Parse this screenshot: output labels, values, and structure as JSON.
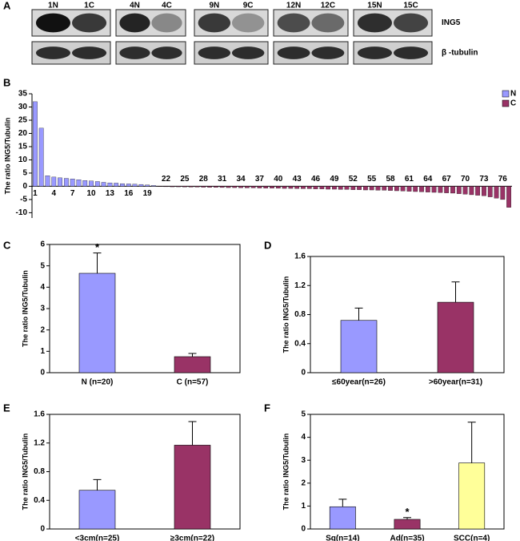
{
  "blot": {
    "label": "A",
    "lanes": [
      "1N",
      "1C",
      "4N",
      "4C",
      "9N",
      "9C",
      "12N",
      "12C",
      "15N",
      "15C"
    ],
    "rows": [
      "ING5",
      "β -tubulin"
    ]
  },
  "chart_data": [
    {
      "type": "bar",
      "label": "B",
      "ylabel": "The ratio ING5/Tubulin",
      "categories": [
        "1",
        null,
        null,
        "4",
        null,
        null,
        "7",
        null,
        null,
        "10",
        null,
        null,
        "13",
        null,
        null,
        "16",
        null,
        null,
        "19",
        null,
        null,
        "22",
        null,
        null,
        "25",
        null,
        null,
        "28",
        null,
        null,
        "31",
        null,
        null,
        "34",
        null,
        null,
        "37",
        null,
        null,
        "40",
        null,
        null,
        "43",
        null,
        null,
        "46",
        null,
        null,
        "49",
        null,
        null,
        "52",
        null,
        null,
        "55",
        null,
        null,
        "58",
        null,
        null,
        "61",
        null,
        null,
        "64",
        null,
        null,
        "67",
        null,
        null,
        "70",
        null,
        null,
        "73",
        null,
        null,
        "76",
        null
      ],
      "series": [
        {
          "name": "N",
          "color": "#9999ff",
          "values": [
            32,
            22,
            4,
            3.5,
            3.2,
            3,
            2.8,
            2.5,
            2.2,
            2,
            1.8,
            1.5,
            1.3,
            1.2,
            1,
            0.9,
            0.8,
            0.7,
            0.5,
            0.3,
            null,
            null,
            null,
            null,
            null,
            null,
            null,
            null,
            null,
            null,
            null,
            null,
            null,
            null,
            null,
            null,
            null,
            null,
            null,
            null,
            null,
            null,
            null,
            null,
            null,
            null,
            null,
            null,
            null,
            null,
            null,
            null,
            null,
            null,
            null,
            null,
            null,
            null,
            null,
            null,
            null,
            null,
            null,
            null,
            null,
            null,
            null,
            null,
            null,
            null,
            null,
            null,
            null,
            null,
            null,
            null,
            null
          ]
        },
        {
          "name": "C",
          "color": "#993366",
          "values": [
            null,
            null,
            null,
            null,
            null,
            null,
            null,
            null,
            null,
            null,
            null,
            null,
            null,
            null,
            null,
            null,
            null,
            null,
            null,
            null,
            -0.1,
            -0.15,
            -0.2,
            -0.2,
            -0.25,
            -0.3,
            -0.3,
            -0.35,
            -0.4,
            -0.4,
            -0.45,
            -0.5,
            -0.5,
            -0.55,
            -0.6,
            -0.6,
            -0.65,
            -0.7,
            -0.7,
            -0.75,
            -0.8,
            -0.8,
            -0.85,
            -0.9,
            -0.9,
            -1,
            -1,
            -1.1,
            -1.1,
            -1.2,
            -1.2,
            -1.3,
            -1.3,
            -1.4,
            -1.4,
            -1.5,
            -1.5,
            -1.6,
            -1.7,
            -1.8,
            -1.9,
            -2,
            -2.1,
            -2.2,
            -2.3,
            -2.4,
            -2.5,
            -2.6,
            -2.8,
            -3,
            -3.2,
            -3.4,
            -3.6,
            -4,
            -4.5,
            -5,
            -8
          ]
        }
      ],
      "ylim": [
        -12,
        35
      ],
      "yticks": [
        -10,
        -5,
        0,
        5,
        10,
        15,
        20,
        25,
        30,
        35
      ],
      "legend": "upper right"
    },
    {
      "type": "bar",
      "label": "C",
      "ylabel": "The ratio ING5/Tubulin",
      "categories": [
        "N (n=20)",
        "C (n=57)"
      ],
      "values": [
        4.65,
        0.75
      ],
      "errors": [
        0.95,
        0.15
      ],
      "colors": [
        "#9999ff",
        "#993366"
      ],
      "markers": [
        "*",
        null
      ],
      "ylim": [
        0,
        6
      ],
      "yticks": [
        0,
        1,
        2,
        3,
        4,
        5,
        6
      ]
    },
    {
      "type": "bar",
      "label": "D",
      "ylabel": "The ratio ING5/Tubulin",
      "categories": [
        "≤60year(n=26)",
        ">60year(n=31)"
      ],
      "values": [
        0.72,
        0.97
      ],
      "errors": [
        0.17,
        0.28
      ],
      "colors": [
        "#9999ff",
        "#993366"
      ],
      "ylim": [
        0,
        1.6
      ],
      "yticks": [
        0,
        0.4,
        0.8,
        1.2,
        1.6
      ]
    },
    {
      "type": "bar",
      "label": "E",
      "ylabel": "The ratio ING5/Tubulin",
      "categories": [
        "<3cm(n=25)",
        "≥3cm(n=22)"
      ],
      "values": [
        0.54,
        1.17
      ],
      "errors": [
        0.15,
        0.33
      ],
      "colors": [
        "#9999ff",
        "#993366"
      ],
      "ylim": [
        0,
        1.6
      ],
      "yticks": [
        0,
        0.4,
        0.8,
        1.2,
        1.6
      ]
    },
    {
      "type": "bar",
      "label": "F",
      "ylabel": "The ratio ING5/Tubulin",
      "categories": [
        "Sq(n=14)",
        "Ad(n=35)",
        "SCC(n=4)"
      ],
      "values": [
        0.97,
        0.42,
        2.88
      ],
      "errors": [
        0.33,
        0.08,
        1.78
      ],
      "colors": [
        "#9999ff",
        "#993366",
        "#ffff99"
      ],
      "markers": [
        null,
        "*",
        null
      ],
      "ylim": [
        0,
        5
      ],
      "yticks": [
        0,
        1,
        2,
        3,
        4,
        5
      ]
    }
  ]
}
